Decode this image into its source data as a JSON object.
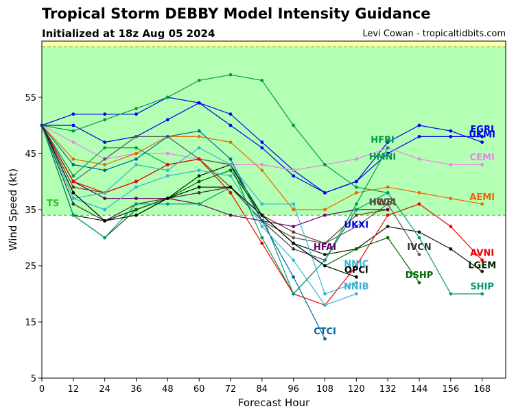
{
  "chart_data": {
    "type": "line",
    "title": "Tropical Storm DEBBY Model Intensity Guidance",
    "subtitle": "Initialized at 18z Aug 05 2024",
    "credit": "Levi Cowan - tropicaltidbits.com",
    "xlabel": "Forecast Hour",
    "ylabel": "Wind Speed (kt)",
    "xlim": [
      0,
      177
    ],
    "ylim": [
      5,
      65
    ],
    "xticks": [
      0,
      12,
      24,
      36,
      48,
      60,
      72,
      84,
      96,
      108,
      120,
      132,
      144,
      156,
      168
    ],
    "yticks": [
      5,
      15,
      25,
      35,
      45,
      55
    ],
    "grid": false,
    "bands": [
      {
        "label": "TS",
        "from": 34,
        "to": 64,
        "color": "#b3ffb3",
        "label_color": "#33bb33"
      },
      {
        "label": "",
        "from": 64,
        "to": 65,
        "color": "#ffffa8",
        "label_color": "#999900"
      }
    ],
    "series": [
      {
        "name": "EGRI",
        "color": "#0000ee",
        "x": [
          0,
          12,
          24,
          36,
          48,
          60,
          72,
          84,
          96,
          108,
          120,
          132,
          144,
          156,
          168
        ],
        "y": [
          50,
          52,
          52,
          52,
          55,
          54,
          52,
          47,
          42,
          38,
          40,
          45,
          48,
          48,
          48
        ]
      },
      {
        "name": "UKMI",
        "color": "#0000ee",
        "x": [
          0,
          12,
          24,
          36,
          48,
          60,
          72,
          84,
          96,
          108,
          120,
          132,
          144,
          156,
          168
        ],
        "y": [
          50,
          50,
          47,
          48,
          51,
          54,
          50,
          46,
          41,
          38,
          40,
          47,
          50,
          49,
          47
        ]
      },
      {
        "name": "CEMI",
        "color": "#ee82ee",
        "x": [
          0,
          12,
          24,
          36,
          48,
          60,
          72,
          84,
          96,
          108,
          120,
          132,
          144,
          156,
          168
        ],
        "y": [
          50,
          47,
          44,
          45,
          45,
          44,
          43,
          43,
          42,
          43,
          44,
          46,
          44,
          43,
          43
        ]
      },
      {
        "name": "AEMI",
        "color": "#ee6600",
        "x": [
          0,
          12,
          24,
          36,
          48,
          60,
          72,
          84,
          96,
          108,
          120,
          132,
          144,
          156,
          168
        ],
        "y": [
          50,
          44,
          43,
          45,
          48,
          48,
          47,
          42,
          35,
          35,
          38,
          39,
          38,
          37,
          36
        ]
      },
      {
        "name": "HFBI",
        "color": "#00994d",
        "x": [
          0,
          12,
          24,
          36,
          48,
          60,
          72,
          84,
          96,
          108,
          120,
          132
        ],
        "y": [
          50,
          49,
          51,
          53,
          55,
          58,
          59,
          58,
          50,
          43,
          39,
          38
        ]
      },
      {
        "name": "HMNI",
        "color": "#00994d",
        "x": [
          0,
          12,
          24,
          36,
          48,
          60,
          72,
          84,
          96,
          108,
          120,
          132
        ],
        "y": [
          50,
          41,
          46,
          46,
          43,
          44,
          43,
          30,
          20,
          26,
          36,
          46
        ]
      },
      {
        "name": "HWFI",
        "color": "#6b3a1e",
        "x": [
          0,
          12,
          24,
          36,
          48,
          60,
          72,
          84,
          96,
          108,
          120,
          132
        ],
        "y": [
          50,
          39,
          38,
          40,
          43,
          44,
          39,
          34,
          31,
          29,
          34,
          35
        ]
      },
      {
        "name": "HCCA",
        "color": "#555555",
        "x": [
          0,
          12,
          24,
          36,
          48,
          60,
          72,
          84,
          96,
          108,
          120,
          132,
          144
        ],
        "y": [
          50,
          40,
          44,
          48,
          48,
          44,
          43,
          33,
          30,
          29,
          32,
          36,
          27
        ]
      },
      {
        "name": "HFAI",
        "color": "#660066",
        "x": [
          0,
          12,
          24,
          36,
          48,
          60,
          72,
          84,
          96,
          108,
          120,
          132
        ],
        "y": [
          50,
          40,
          37,
          37,
          37,
          36,
          34,
          33,
          32,
          34,
          35,
          35
        ]
      },
      {
        "name": "IVCN",
        "color": "#333333",
        "x": [
          0,
          12,
          24,
          36,
          48,
          60,
          72,
          84,
          96,
          108,
          120
        ],
        "y": [
          50,
          36,
          33,
          36,
          37,
          38,
          39,
          33,
          28,
          26,
          35
        ]
      },
      {
        "name": "LGEM",
        "color": "#002200",
        "x": [
          0,
          12,
          24,
          36,
          48,
          60,
          72,
          84,
          96,
          108,
          120,
          132,
          144,
          156,
          168
        ],
        "y": [
          50,
          34,
          33,
          35,
          37,
          41,
          43,
          34,
          29,
          27,
          28,
          32,
          31,
          28,
          24
        ]
      },
      {
        "name": "AVNI",
        "color": "#ee0000",
        "x": [
          0,
          12,
          24,
          36,
          48,
          60,
          72,
          84,
          96,
          108,
          120,
          132,
          144,
          156,
          168
        ],
        "y": [
          50,
          40,
          38,
          40,
          43,
          44,
          38,
          29,
          20,
          18,
          25,
          34,
          36,
          32,
          26
        ]
      },
      {
        "name": "DSHP",
        "color": "#006600",
        "x": [
          0,
          12,
          24,
          36,
          48,
          60,
          72,
          84,
          96,
          108,
          120,
          132,
          144
        ],
        "y": [
          50,
          34,
          30,
          35,
          37,
          40,
          42,
          34,
          29,
          25,
          28,
          30,
          22
        ]
      },
      {
        "name": "SHIP",
        "color": "#009977",
        "x": [
          0,
          12,
          24,
          36,
          48,
          60,
          72,
          84,
          96,
          108,
          120,
          132,
          144,
          156,
          168
        ],
        "y": [
          50,
          34,
          30,
          36,
          36,
          36,
          39,
          34,
          20,
          26,
          35,
          38,
          30,
          20,
          20
        ]
      },
      {
        "name": "NNIC",
        "color": "#33b5d5",
        "x": [
          0,
          12,
          24,
          36,
          48,
          60,
          72,
          84,
          96,
          108,
          120
        ],
        "y": [
          50,
          37,
          38,
          43,
          42,
          46,
          43,
          36,
          36,
          20,
          22
        ]
      },
      {
        "name": "NNIB",
        "color": "#33b5d5",
        "x": [
          0,
          12,
          24,
          36,
          48,
          60,
          72,
          84,
          96,
          108,
          120
        ],
        "y": [
          50,
          37,
          35,
          39,
          41,
          42,
          41,
          32,
          26,
          18,
          20
        ]
      },
      {
        "name": "OPCI",
        "color": "#000000",
        "x": [
          0,
          12,
          24,
          36,
          48,
          60,
          72,
          84,
          96,
          108,
          120
        ],
        "y": [
          50,
          38,
          33,
          34,
          37,
          39,
          39,
          34,
          29,
          25,
          23
        ]
      },
      {
        "name": "CTCI",
        "color": "#006699",
        "x": [
          0,
          12,
          24,
          36,
          48,
          60,
          72,
          84,
          96,
          108
        ],
        "y": [
          50,
          43,
          42,
          44,
          48,
          49,
          44,
          33,
          23,
          12
        ]
      }
    ],
    "labels": [
      {
        "text": "EGRI",
        "color": "#0000ee",
        "x": 168,
        "y": 49.4
      },
      {
        "text": "UKMI",
        "color": "#0000ee",
        "x": 168,
        "y": 48.5
      },
      {
        "text": "CEMI",
        "color": "#ee82ee",
        "x": 168,
        "y": 44.4
      },
      {
        "text": "AEMI",
        "color": "#ee6600",
        "x": 168,
        "y": 37.3
      },
      {
        "text": "HFBI",
        "color": "#00994d",
        "x": 130,
        "y": 47.5
      },
      {
        "text": "HMNI",
        "color": "#00994d",
        "x": 130,
        "y": 44.5
      },
      {
        "text": "HWFI",
        "color": "#6b3a1e",
        "x": 130,
        "y": 36.4
      },
      {
        "text": "HCCA",
        "color": "#555555",
        "x": 130,
        "y": 36.4
      },
      {
        "text": "HFAI",
        "color": "#660066",
        "x": 108,
        "y": 28.4
      },
      {
        "text": "IVCN",
        "color": "#333333",
        "x": 144,
        "y": 28.4
      },
      {
        "text": "AVNI",
        "color": "#ee0000",
        "x": 168,
        "y": 27.4
      },
      {
        "text": "LGEM",
        "color": "#002200",
        "x": 168,
        "y": 25.2
      },
      {
        "text": "NNIC",
        "color": "#33b5d5",
        "x": 120,
        "y": 25.4
      },
      {
        "text": "OPCI",
        "color": "#000000",
        "x": 120,
        "y": 24.3
      },
      {
        "text": "DSHP",
        "color": "#006600",
        "x": 144,
        "y": 23.4
      },
      {
        "text": "SHIP",
        "color": "#009977",
        "x": 168,
        "y": 21.4
      },
      {
        "text": "NNIB",
        "color": "#33b5d5",
        "x": 120,
        "y": 21.4
      },
      {
        "text": "CTCI",
        "color": "#006699",
        "x": 108,
        "y": 13.4
      },
      {
        "text": "UKXI",
        "color": "#0000ee",
        "x": 120,
        "y": 32.4
      }
    ]
  }
}
